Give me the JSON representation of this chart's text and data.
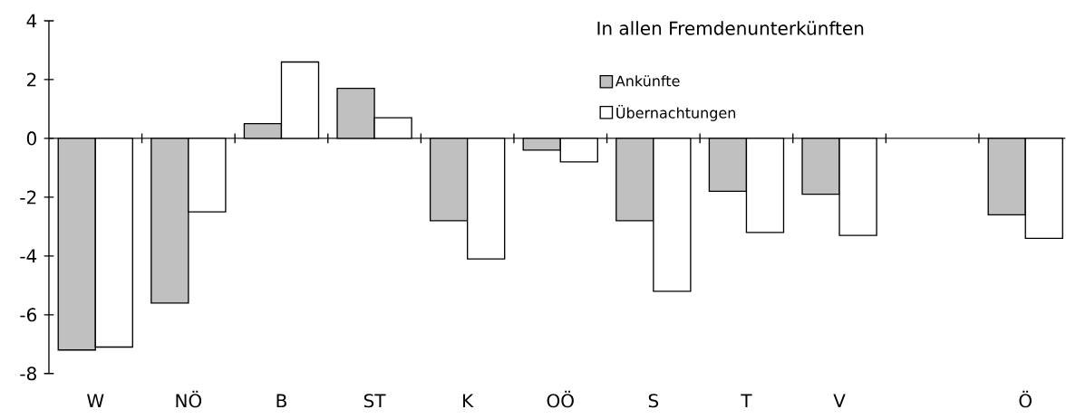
{
  "chart_data": {
    "type": "bar",
    "legend_title": "In allen Fremdenunterkünften",
    "categories": [
      "W",
      "NÖ",
      "B",
      "ST",
      "K",
      "OÖ",
      "S",
      "T",
      "V",
      null,
      "Ö"
    ],
    "series": [
      {
        "name": "Ankünfte",
        "color": "#c0c0c0",
        "values": [
          -7.2,
          -5.6,
          0.5,
          1.7,
          -2.8,
          -0.4,
          -2.8,
          -1.8,
          -1.9,
          null,
          -2.6
        ]
      },
      {
        "name": "Übernachtungen",
        "color": "#ffffff",
        "values": [
          -7.1,
          -2.5,
          2.6,
          0.7,
          -4.1,
          -0.8,
          -5.2,
          -3.2,
          -3.3,
          null,
          -3.4
        ]
      }
    ],
    "ylim": [
      -8,
      4
    ],
    "yticks": [
      -8,
      -6,
      -4,
      -2,
      0,
      2,
      4
    ],
    "legend": "top right"
  }
}
